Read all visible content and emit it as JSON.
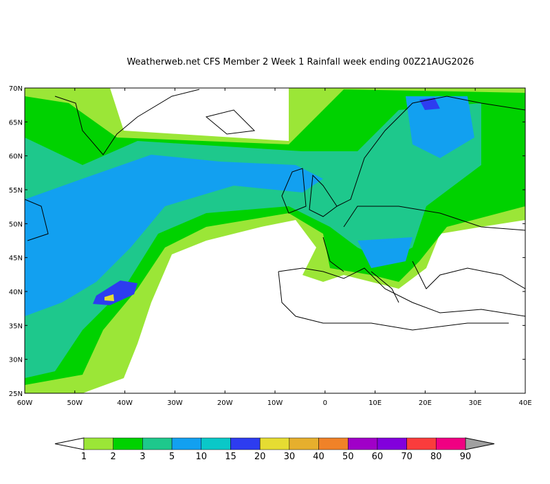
{
  "title": "Weatherweb.net CFS Member 2 Week 1 Rainfall week ending 00Z21AUG2026",
  "map": {
    "lon_labels": [
      "60W",
      "50W",
      "40W",
      "30W",
      "20W",
      "10W",
      "0",
      "10E",
      "20E",
      "30E",
      "40E"
    ],
    "lat_labels": [
      "70N",
      "65N",
      "60N",
      "55N",
      "50N",
      "45N",
      "40N",
      "35N",
      "30N",
      "25N"
    ]
  },
  "legend": {
    "labels": [
      "1",
      "2",
      "3",
      "5",
      "10",
      "15",
      "20",
      "30",
      "40",
      "50",
      "60",
      "70",
      "80",
      "90"
    ],
    "colors": [
      "#9be637",
      "#00d200",
      "#1ec88c",
      "#12a0f0",
      "#0ac8c8",
      "#2d3cf0",
      "#e6dc32",
      "#e6af2d",
      "#f08228",
      "#a000c8",
      "#8200dc",
      "#fa3c3c",
      "#f00082"
    ],
    "under_color": "#ffffff",
    "over_color": "#a0a0a0"
  }
}
